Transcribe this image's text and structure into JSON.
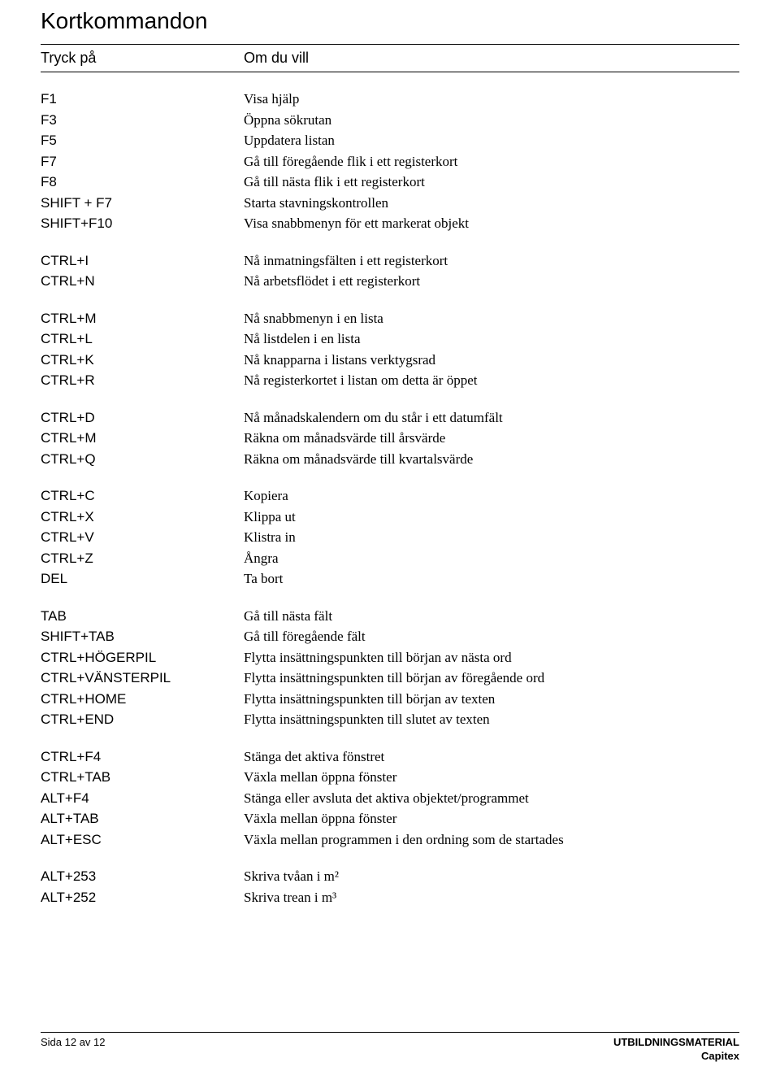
{
  "title": "Kortkommandon",
  "header": {
    "key": "Tryck på",
    "desc": "Om du vill"
  },
  "groups": [
    [
      {
        "key": "F1",
        "desc": "Visa hjälp"
      },
      {
        "key": "F3",
        "desc": "Öppna sökrutan"
      },
      {
        "key": "F5",
        "desc": "Uppdatera listan"
      },
      {
        "key": "F7",
        "desc": "Gå till föregående flik i ett registerkort"
      },
      {
        "key": "F8",
        "desc": "Gå till nästa flik i ett registerkort"
      },
      {
        "key": "SHIFT + F7",
        "desc": "Starta stavningskontrollen"
      },
      {
        "key": "SHIFT+F10",
        "desc": "Visa snabbmenyn för ett markerat objekt"
      }
    ],
    [
      {
        "key": "CTRL+I",
        "desc": "Nå inmatningsfälten i ett registerkort"
      },
      {
        "key": "CTRL+N",
        "desc": "Nå arbetsflödet i ett registerkort"
      }
    ],
    [
      {
        "key": "CTRL+M",
        "desc": "Nå snabbmenyn i en lista"
      },
      {
        "key": "CTRL+L",
        "desc": "Nå listdelen i en lista"
      },
      {
        "key": "CTRL+K",
        "desc": "Nå knapparna i listans verktygsrad"
      },
      {
        "key": "CTRL+R",
        "desc": "Nå registerkortet i listan om detta är öppet"
      }
    ],
    [
      {
        "key": "CTRL+D",
        "desc": "Nå månadskalendern om du står i ett datumfält"
      },
      {
        "key": "CTRL+M",
        "desc": "Räkna om månadsvärde till årsvärde"
      },
      {
        "key": "CTRL+Q",
        "desc": "Räkna om månadsvärde till kvartalsvärde"
      }
    ],
    [
      {
        "key": "CTRL+C",
        "desc": "Kopiera"
      },
      {
        "key": "CTRL+X",
        "desc": "Klippa ut"
      },
      {
        "key": "CTRL+V",
        "desc": "Klistra in"
      },
      {
        "key": "CTRL+Z",
        "desc": "Ångra"
      },
      {
        "key": "DEL",
        "desc": "Ta bort"
      }
    ],
    [
      {
        "key": "TAB",
        "desc": "Gå till nästa fält"
      },
      {
        "key": "SHIFT+TAB",
        "desc": "Gå till föregående fält"
      },
      {
        "key": "CTRL+HÖGERPIL",
        "desc": "Flytta insättningspunkten till början av nästa ord"
      },
      {
        "key": "CTRL+VÄNSTERPIL",
        "desc": "Flytta insättningspunkten till början av föregående ord"
      },
      {
        "key": "CTRL+HOME",
        "desc": "Flytta insättningspunkten till början av texten"
      },
      {
        "key": "CTRL+END",
        "desc": "Flytta insättningspunkten till slutet av texten"
      }
    ],
    [
      {
        "key": "CTRL+F4",
        "desc": "Stänga det aktiva fönstret"
      },
      {
        "key": "CTRL+TAB",
        "desc": "Växla mellan öppna fönster"
      },
      {
        "key": "ALT+F4",
        "desc": "Stänga eller avsluta det aktiva objektet/programmet"
      },
      {
        "key": "ALT+TAB",
        "desc": "Växla mellan öppna fönster"
      },
      {
        "key": "ALT+ESC",
        "desc": "Växla mellan programmen i den ordning som de startades"
      }
    ],
    [
      {
        "key": "ALT+253",
        "desc": "Skriva tvåan i m²"
      },
      {
        "key": "ALT+252",
        "desc": "Skriva trean i m³"
      }
    ]
  ],
  "footer": {
    "left": "Sida 12 av 12",
    "right_line1": "UTBILDNINGSMATERIAL",
    "right_line2": "Capitex"
  }
}
